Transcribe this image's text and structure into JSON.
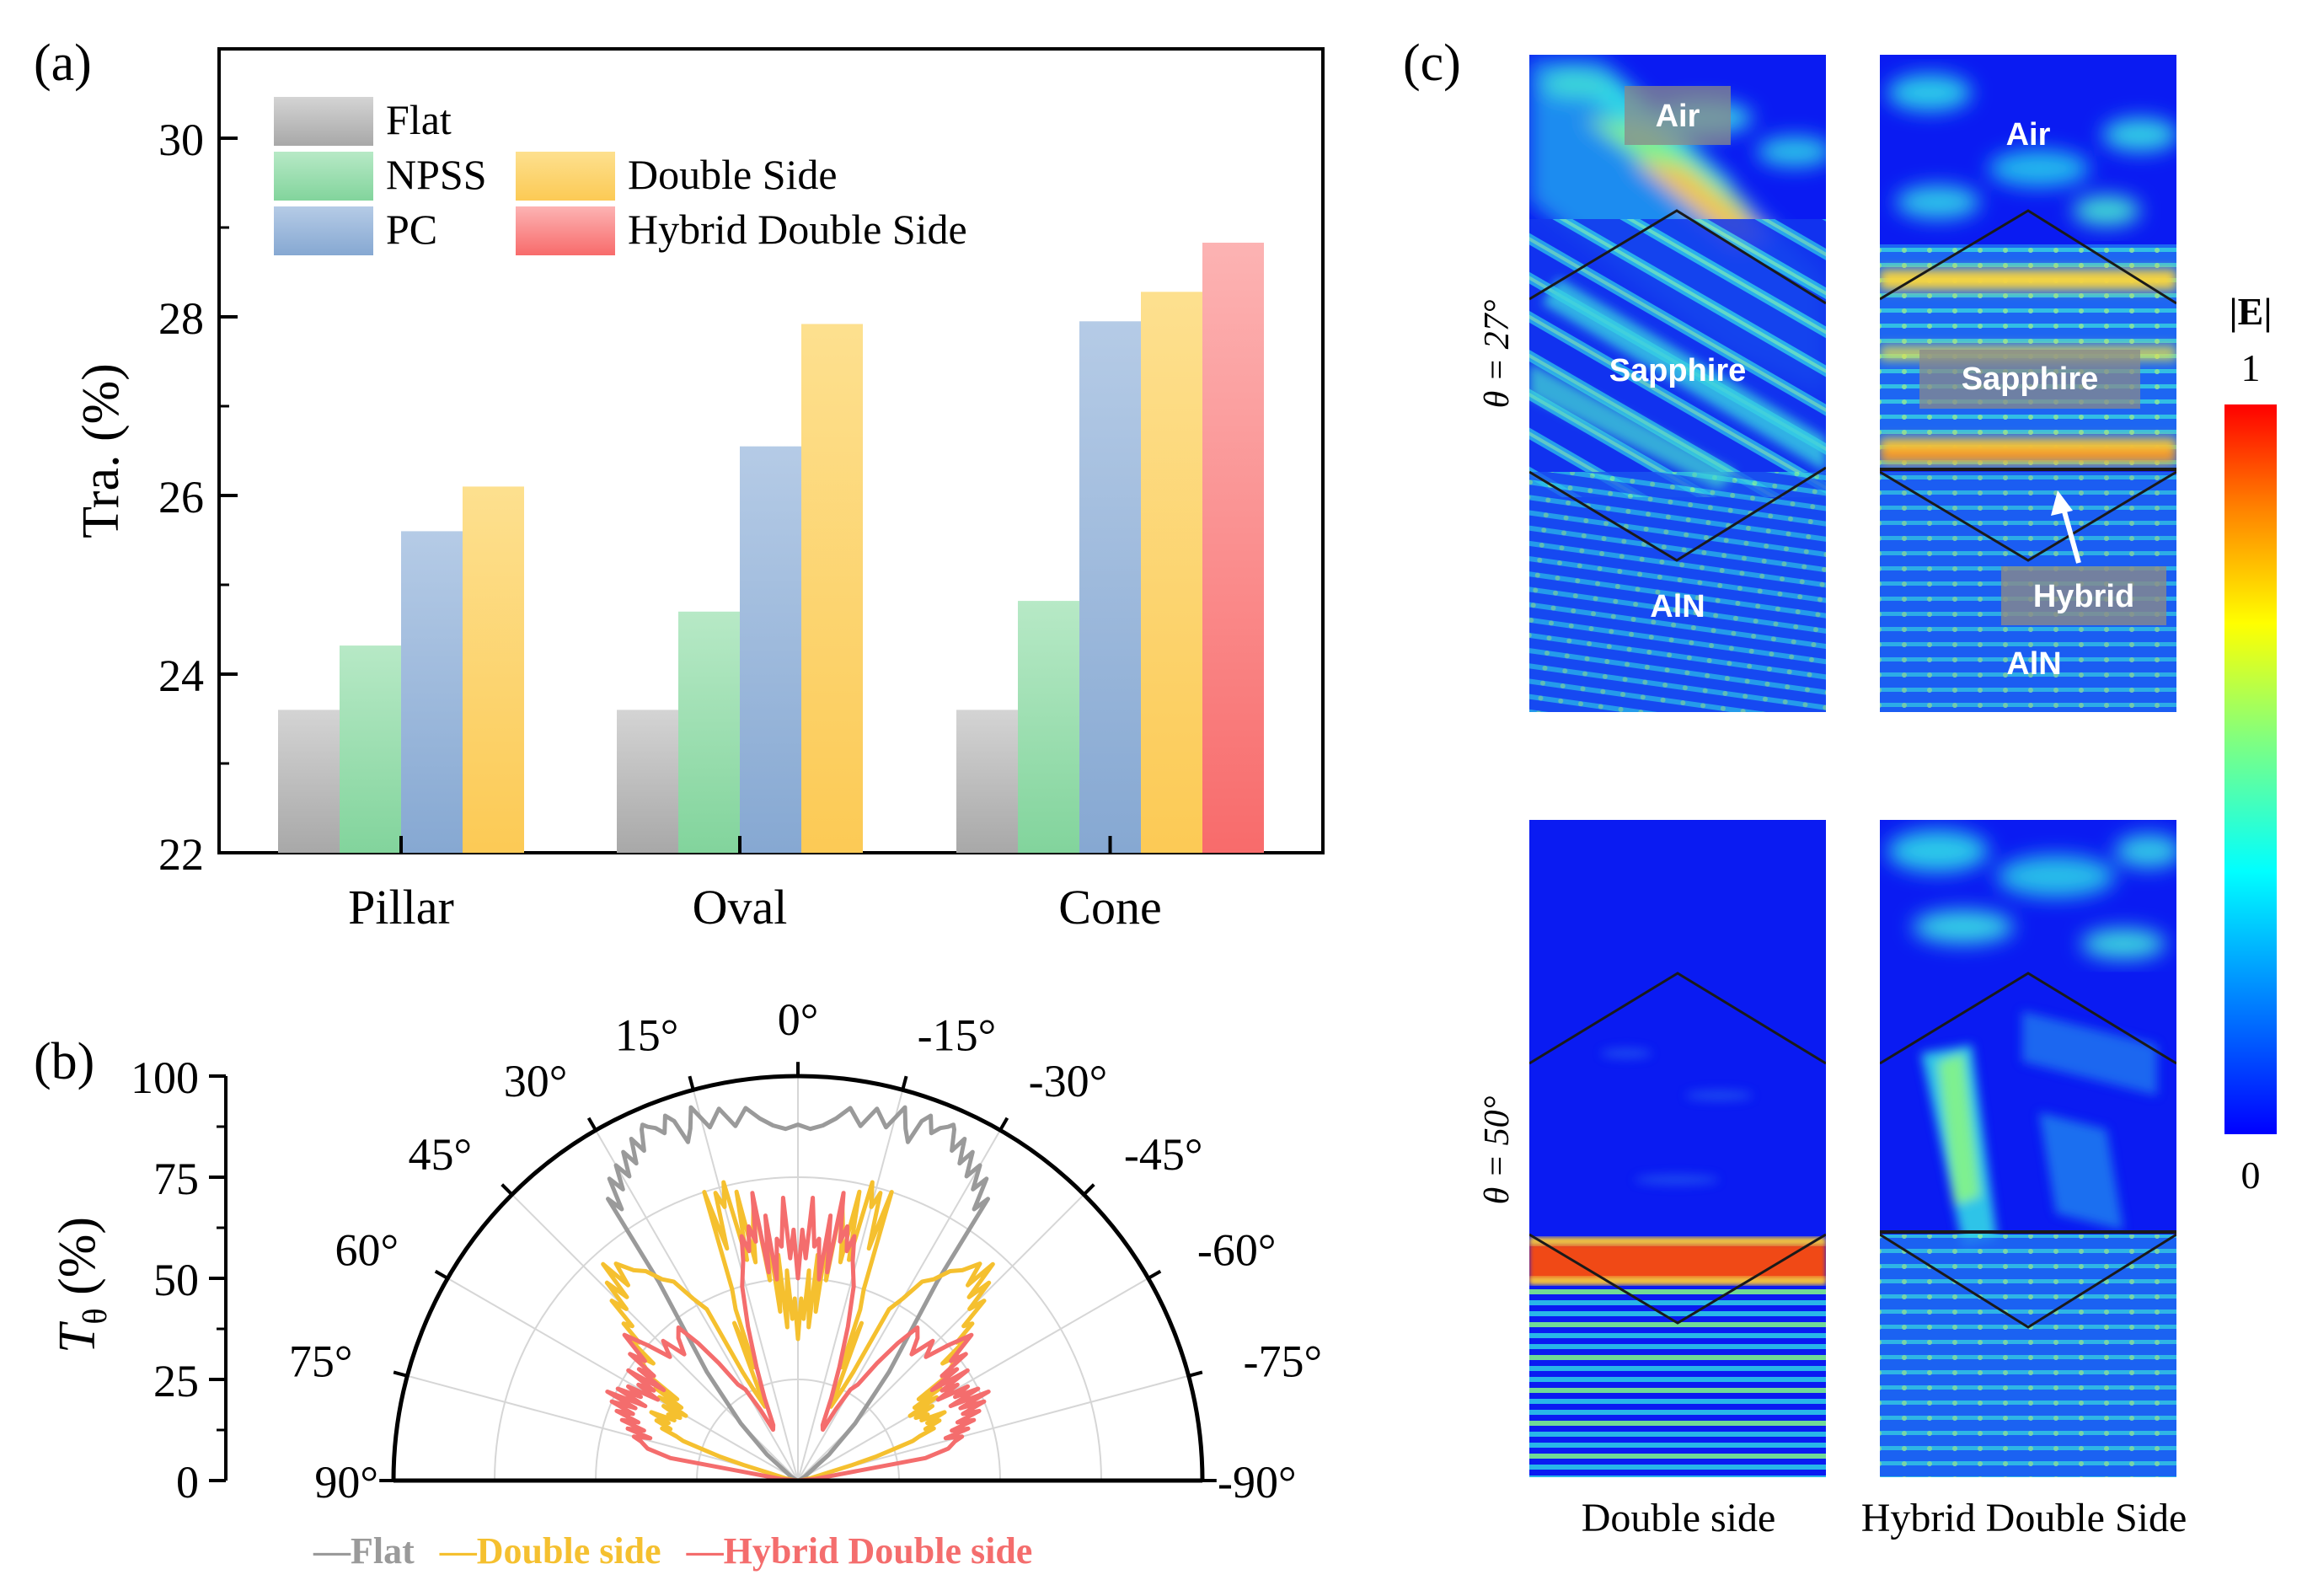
{
  "panel_labels": {
    "a": "(a)",
    "b": "(b)",
    "c": "(c)"
  },
  "chart_data": [
    {
      "id": "a",
      "type": "bar",
      "ylabel": "Tra. (%)",
      "xlabel": "",
      "ylim": [
        22,
        31
      ],
      "yticks": [
        22,
        24,
        26,
        28,
        30
      ],
      "categories": [
        "Pillar",
        "Oval",
        "Cone"
      ],
      "legend_position": "top-left",
      "series": [
        {
          "name": "Flat",
          "color": "#b0b0b0",
          "values": [
            23.6,
            23.6,
            23.6
          ]
        },
        {
          "name": "NPSS",
          "color": "#8fd9a8",
          "values": [
            24.32,
            24.7,
            24.82
          ]
        },
        {
          "name": "PC",
          "color": "#94b4d8",
          "values": [
            25.6,
            26.55,
            27.95
          ]
        },
        {
          "name": "Double Side",
          "color": "#fdd36a",
          "values": [
            26.1,
            27.92,
            28.28
          ]
        },
        {
          "name": "Hybrid Double Side",
          "color": "#fb8a8a",
          "values": [
            null,
            null,
            28.83
          ]
        }
      ]
    },
    {
      "id": "b",
      "type": "line",
      "subtype": "polar-half",
      "ylabel": "T_θ (%)",
      "ylabel_main": "T",
      "ylabel_sub": "θ",
      "ylabel_tail": " (%)",
      "radial_ticks": [
        0,
        25,
        50,
        75,
        100
      ],
      "angle_ticks": [
        90,
        75,
        60,
        45,
        30,
        15,
        0,
        -15,
        -30,
        -45,
        -60,
        -75,
        -90
      ],
      "angle_tick_labels": [
        "90°",
        "75°",
        "60°",
        "45°",
        "30°",
        "15°",
        "0°",
        "-15°",
        "-30°",
        "-45°",
        "-60°",
        "-75°",
        "-90°"
      ],
      "legend": [
        "—Flat",
        "—Double side",
        "—Hybrid Double side"
      ],
      "series": [
        {
          "name": "Flat",
          "color": "#9a9a9a",
          "theta": [
            0,
            2,
            4,
            6,
            8,
            10,
            12,
            14,
            16,
            17,
            18,
            19,
            20,
            21,
            22,
            23,
            23.6,
            24,
            25,
            26,
            27,
            28,
            29,
            30,
            31,
            32,
            33,
            34,
            35,
            40,
            45,
            50,
            60,
            70,
            80,
            90
          ],
          "r": [
            88,
            87,
            88,
            90,
            93,
            89,
            94,
            90,
            96,
            91,
            88,
            94,
            96,
            92,
            94,
            95,
            96,
            95,
            90,
            94,
            88,
            92,
            86,
            90,
            84,
            88,
            80,
            84,
            60,
            35,
            20,
            10,
            2,
            0.5,
            0.2,
            0
          ]
        },
        {
          "name": "Double side",
          "color": "#f5c02f",
          "theta": [
            0,
            1,
            2,
            3,
            4,
            5,
            6,
            7,
            8,
            9,
            10,
            11,
            12,
            13,
            14,
            15,
            16,
            17,
            18,
            19,
            20,
            21,
            22,
            23,
            24,
            26,
            27,
            28,
            30,
            32,
            34,
            36,
            38,
            40,
            41,
            42,
            43,
            44,
            45,
            46,
            47,
            48,
            49,
            50,
            51,
            52,
            53,
            54,
            55,
            56,
            57,
            58,
            59,
            60,
            61,
            62,
            63,
            64,
            65,
            66,
            67,
            68,
            69,
            70,
            71,
            72,
            73,
            74,
            75,
            80,
            85,
            90
          ],
          "r": [
            35,
            45,
            40,
            52,
            38,
            56,
            42,
            64,
            50,
            70,
            64,
            55,
            73,
            56,
            76,
            70,
            74,
            60,
            75,
            50,
            45,
            30,
            42,
            28,
            20,
            25,
            30,
            48,
            52,
            58,
            60,
            64,
            66,
            70,
            64,
            72,
            62,
            68,
            60,
            64,
            56,
            58,
            52,
            54,
            46,
            50,
            48,
            46,
            44,
            36,
            42,
            34,
            40,
            32,
            38,
            33,
            36,
            34,
            40,
            35,
            38,
            34,
            36,
            32,
            30,
            24,
            20,
            14,
            8,
            3,
            1,
            0
          ]
        },
        {
          "name": "Hybrid Double side",
          "color": "#f46d6d",
          "theta": [
            0,
            1,
            2,
            3,
            4,
            5,
            6,
            7,
            8,
            9,
            10,
            11,
            12,
            13,
            14,
            16,
            18,
            20,
            22,
            24,
            26,
            28,
            30,
            32,
            34,
            36,
            38,
            40,
            42,
            44,
            46,
            48,
            50,
            52,
            53,
            54,
            55,
            56,
            57,
            58,
            59,
            60,
            61,
            62,
            63,
            64,
            65,
            66,
            67,
            68,
            69,
            70,
            71,
            72,
            73,
            74,
            75,
            76,
            78,
            80,
            85,
            90
          ],
          "r": [
            50,
            62,
            55,
            70,
            58,
            60,
            50,
            66,
            52,
            72,
            60,
            64,
            58,
            62,
            56,
            50,
            40,
            30,
            22,
            15,
            14,
            20,
            26,
            28,
            35,
            42,
            48,
            46,
            42,
            48,
            44,
            50,
            56,
            48,
            52,
            44,
            48,
            40,
            50,
            42,
            46,
            40,
            48,
            44,
            50,
            42,
            52,
            44,
            50,
            44,
            48,
            42,
            46,
            40,
            44,
            38,
            42,
            40,
            38,
            32,
            4,
            0
          ]
        }
      ]
    }
  ],
  "panel_c": {
    "row_labels": [
      "θ = 27°",
      "θ = 50°"
    ],
    "column_labels": [
      "Double side",
      "Hybrid Double Side"
    ],
    "region_labels": {
      "top_left": [
        "Air",
        "Sapphire",
        "AlN"
      ],
      "top_right": [
        "Air",
        "Sapphire",
        "Hybrid",
        "AlN"
      ]
    },
    "colorbar": {
      "title": "|E|",
      "max_label": "1",
      "min_label": "0",
      "stops": [
        "#0000ff",
        "#00a0ff",
        "#00ffff",
        "#80ff80",
        "#ffff00",
        "#ff8000",
        "#ff0000"
      ]
    },
    "field_colors": {
      "background": "#0a1bf2",
      "wave": "#27c8ea",
      "hot": "#f4d640",
      "max": "#f04a12"
    }
  }
}
